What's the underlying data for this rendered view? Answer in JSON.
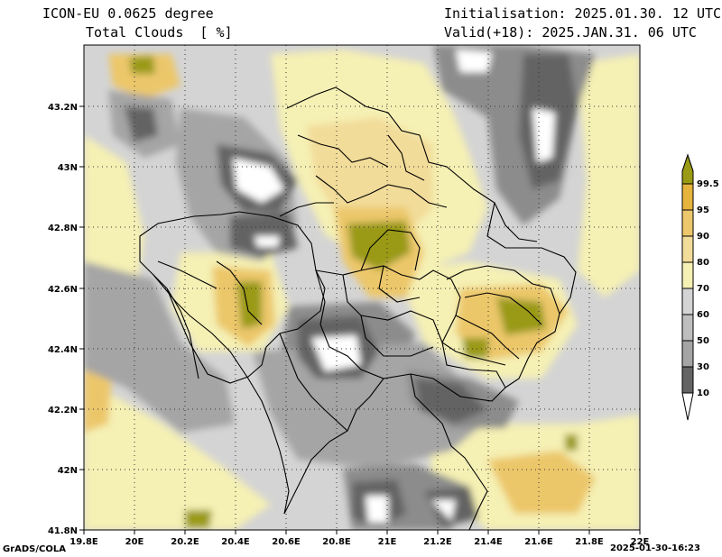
{
  "header": {
    "model": "ICON-EU 0.0625 degree",
    "variable": "Total Clouds  [ %]",
    "init": "Initialisation: 2025.01.30. 12 UTC",
    "valid": "Valid(+18): 2025.JAN.31. 06 UTC"
  },
  "footer": {
    "credit": "GrADS/COLA",
    "timestamp": "2025-01-30-16:23"
  },
  "axes": {
    "lon_ticks": [
      "19.8E",
      "20E",
      "20.2E",
      "20.4E",
      "20.6E",
      "20.8E",
      "21E",
      "21.2E",
      "21.4E",
      "21.6E",
      "21.8E",
      "22E"
    ],
    "lat_ticks": [
      "43.2N",
      "43N",
      "42.8N",
      "42.6N",
      "42.4N",
      "42.2N",
      "42N",
      "41.8N"
    ],
    "lon_range": [
      19.8,
      22.0
    ],
    "lat_range": [
      41.8,
      43.4
    ]
  },
  "colorbar": {
    "labels": [
      "99.5",
      "95",
      "90",
      "80",
      "70",
      "60",
      "50",
      "30",
      "10"
    ],
    "colors": {
      "c10": "#646464",
      "c30": "#8c8c8c",
      "c50": "#a5a5a5",
      "c60": "#bebebe",
      "c70": "#d4d4d4",
      "c80": "#f5f0b4",
      "c90": "#f2dc9a",
      "c95": "#ecc76b",
      "c99": "#e6b33c",
      "cmax": "#9a9a14",
      "cmin": "#ffffff"
    }
  },
  "map": {
    "background": "#c8c8c8",
    "grid": "dotted"
  }
}
